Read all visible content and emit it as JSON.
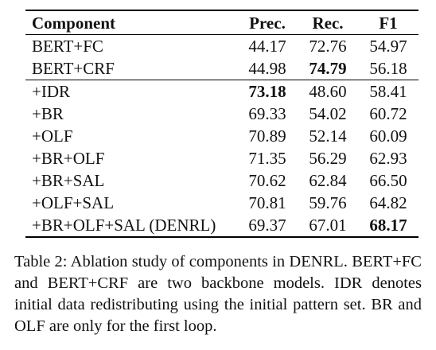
{
  "table": {
    "header": [
      "Component",
      "Prec.",
      "Rec.",
      "F1"
    ],
    "rows": [
      [
        "BERT+FC",
        "44.17",
        "72.76",
        "54.97"
      ],
      [
        "BERT+CRF",
        "44.98",
        "74.79",
        "56.18"
      ],
      [
        "+IDR",
        "73.18",
        "48.60",
        "58.41"
      ],
      [
        "+BR",
        "69.33",
        "54.02",
        "60.72"
      ],
      [
        "+OLF",
        "70.89",
        "52.14",
        "60.09"
      ],
      [
        "+BR+OLF",
        "71.35",
        "56.29",
        "62.93"
      ],
      [
        "+BR+SAL",
        "70.62",
        "62.84",
        "66.50"
      ],
      [
        "+OLF+SAL",
        "70.81",
        "59.76",
        "64.82"
      ],
      [
        "+BR+OLF+SAL (DENRL)",
        "69.37",
        "67.01",
        "68.17"
      ]
    ]
  },
  "caption": "Table 2: Ablation study of components in DENRL. BERT+FC and BERT+CRF are two backbone models. IDR denotes initial data redistributing using the initial pattern set. BR and OLF are only for the first loop."
}
